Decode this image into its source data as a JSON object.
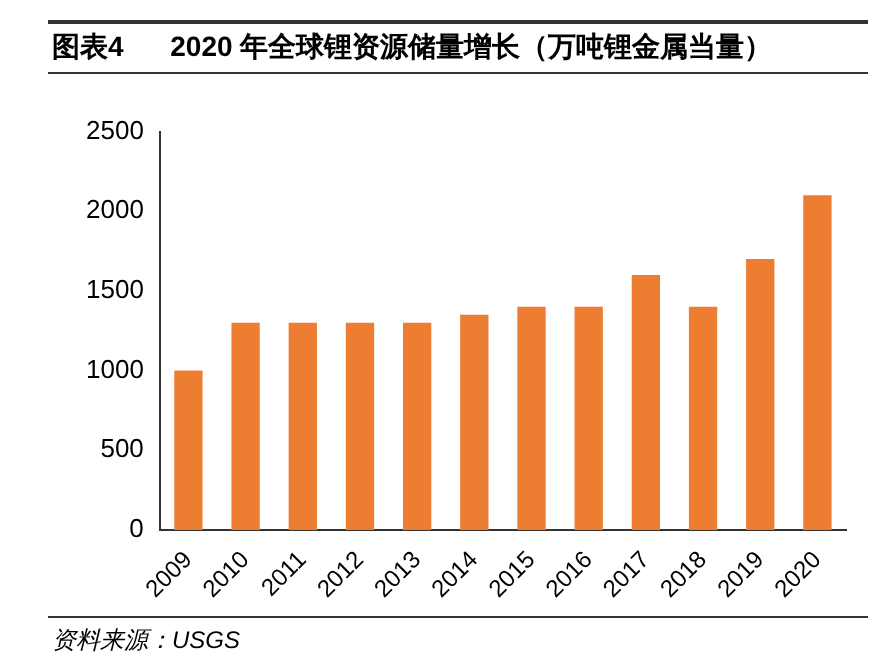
{
  "chart_data": {
    "type": "bar",
    "title": "图表4      2020 年全球锂资源储量增长（万吨锂金属当量）",
    "categories": [
      "2009",
      "2010",
      "2011",
      "2012",
      "2013",
      "2014",
      "2015",
      "2016",
      "2017",
      "2018",
      "2019",
      "2020"
    ],
    "values": [
      1000,
      1300,
      1300,
      1300,
      1300,
      1350,
      1400,
      1400,
      1600,
      1400,
      1700,
      2100
    ],
    "color": "#ed7d31",
    "ylim": [
      0,
      2500
    ],
    "yticks": [
      0,
      500,
      1000,
      1500,
      2000,
      2500
    ],
    "grid": false,
    "legend": false,
    "annotations": [
      "资料来源：USGS"
    ]
  }
}
